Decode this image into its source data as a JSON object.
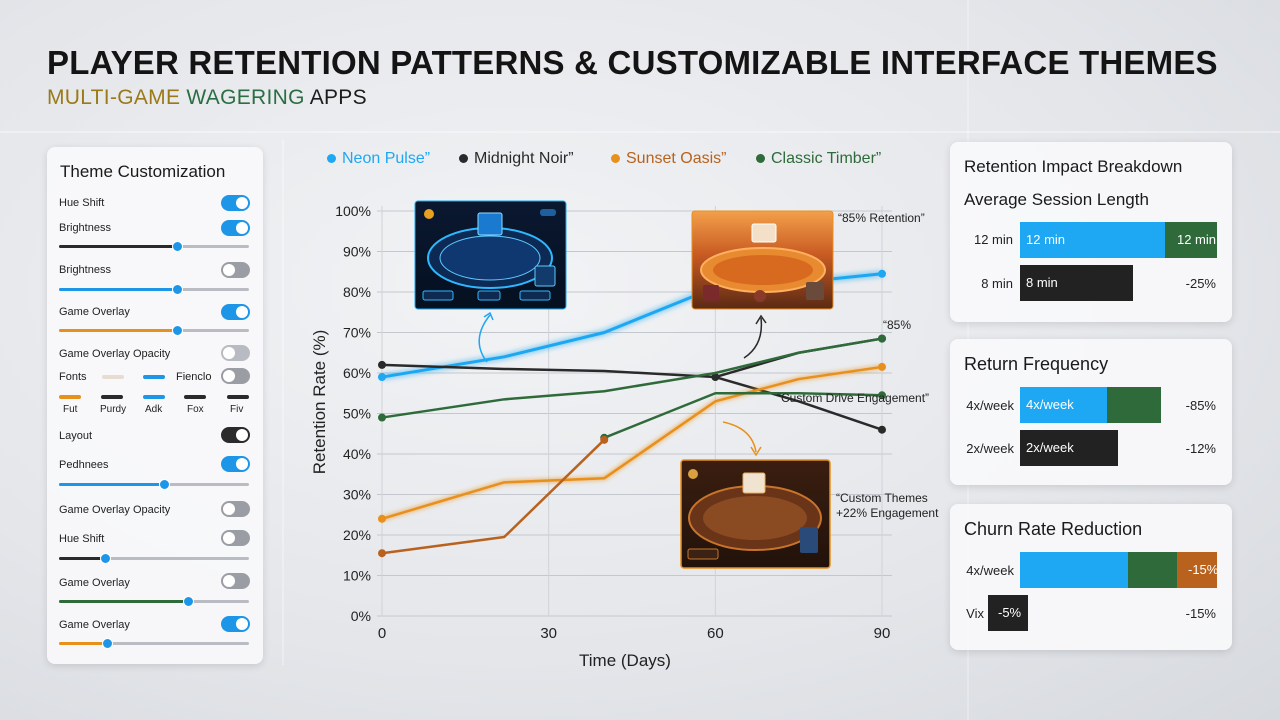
{
  "header": {
    "title": "PLAYER RETENTION PATTERNS & CUSTOMIZABLE INTERFACE THEMES",
    "subtitle_a": "MULTI-GAME ",
    "subtitle_b": "WAGERING ",
    "subtitle_c": "APPS"
  },
  "colors": {
    "neon": "#1ea7f2",
    "noir": "#2a2a2a",
    "sunset": "#e8901c",
    "timber": "#2f6b3a",
    "brown": "#b8621e",
    "accent": "#1e96e8"
  },
  "theme_panel": {
    "title": "Theme Customization",
    "controls": [
      {
        "label": "Hue Shift",
        "toggle": "on"
      },
      {
        "label": "Brightness",
        "toggle": "on",
        "slider": 0.62,
        "slider_color": "#1e96e8"
      },
      {
        "label": "Brightness",
        "toggle": "off",
        "slider": 0.62,
        "slider_color": "#1e96e8"
      },
      {
        "label": "Game Overlay",
        "toggle": "on",
        "slider": 0.62,
        "slider_color": "#e8901c"
      },
      {
        "label": "Game Overlay Opacity",
        "toggle": "offlight"
      },
      {
        "label": "Fonts",
        "toggle": "off",
        "extra": "Fienclo"
      },
      {
        "label": "Layout",
        "toggle": "dark"
      },
      {
        "label": "Pedhnees",
        "toggle": "on",
        "slider": 0.55,
        "slider_color": "#1e96e8"
      },
      {
        "label": "Game Overlay Opacity",
        "toggle": "off"
      },
      {
        "label": "Hue Shift",
        "toggle": "off",
        "slider": 0.24,
        "slider_color": "#2a2a2a"
      },
      {
        "label": "Game Overlay",
        "toggle": "off",
        "slider": 0.68,
        "slider_color": "#2f6b3a"
      },
      {
        "label": "Game Overlay",
        "toggle": "on",
        "slider": 0.25,
        "slider_color": "#e8901c"
      }
    ],
    "fonts": [
      {
        "name": "Fut",
        "color": "#e8901c"
      },
      {
        "name": "Purdy",
        "color": "#2a2a2a"
      },
      {
        "name": "Adk",
        "color": "#1e96e8"
      },
      {
        "name": "Fox",
        "color": "#2a2a2a"
      },
      {
        "name": "Fiv",
        "color": "#2a2a2a"
      }
    ]
  },
  "chart_data": {
    "type": "line",
    "xlabel": "Time (Days)",
    "ylabel": "Retention Rate (%)",
    "x_ticks": [
      "0",
      "30",
      "60",
      "90"
    ],
    "y_ticks": [
      "0%",
      "10%",
      "20%",
      "30%",
      "40%",
      "50%",
      "60%",
      "70%",
      "80%",
      "90%",
      "100%"
    ],
    "xlim": [
      0,
      90
    ],
    "ylim": [
      0,
      100
    ],
    "grid": true,
    "legend_position": "top",
    "legend": [
      "Neon Pulse”",
      "Midnight Noir”",
      "Sunset Oasis”",
      "Classic Timber”"
    ],
    "series": [
      {
        "name": "Neon Pulse”",
        "color": "#1ea7f2",
        "x": [
          0,
          22,
          40,
          58,
          90
        ],
        "y": [
          59,
          64,
          70,
          80,
          84.5
        ]
      },
      {
        "name": "Midnight Noir”",
        "color": "#2a2a2a",
        "x": [
          0,
          22,
          40,
          60,
          75,
          90
        ],
        "y": [
          62,
          61,
          60.5,
          59,
          53,
          46
        ]
      },
      {
        "name": "Midnight Noir”",
        "color": "#2a2a2a",
        "x": [
          60,
          75,
          90
        ],
        "y": [
          59,
          65,
          68.5
        ],
        "legend": false
      },
      {
        "name": "Sunset Oasis”",
        "color": "#e8901c",
        "x": [
          0,
          22,
          40,
          60,
          75,
          90
        ],
        "y": [
          24,
          33,
          34,
          53,
          58.5,
          61.5
        ]
      },
      {
        "name": "Classic Timber”",
        "color": "#2f6b3a",
        "x": [
          0,
          22,
          40,
          60,
          75,
          90
        ],
        "y": [
          49,
          53.5,
          55.5,
          60,
          65,
          68.5
        ]
      },
      {
        "name": "Classic Timber”",
        "color": "#2f6b3a",
        "x": [
          40,
          60,
          75,
          90
        ],
        "y": [
          44,
          55,
          55,
          54.5
        ],
        "legend": false
      },
      {
        "name": "",
        "color": "#b8621e",
        "x": [
          0,
          22,
          40
        ],
        "y": [
          15.5,
          19.5,
          43.5
        ]
      }
    ],
    "annotations": [
      {
        "text": "“85% Retention”"
      },
      {
        "text": "“85%"
      },
      {
        "text": "“Custom Drive Engagement”"
      },
      {
        "text": "“Custom Themes"
      },
      {
        "text": "+22% Engagement"
      }
    ]
  },
  "retention_panel": {
    "title": "Retention Impact Breakdown",
    "section": "Average Session Length",
    "rows": [
      {
        "label": "12 min",
        "bar_text": "12 min",
        "right": "12 min",
        "blue": 0.73,
        "green": 0.27
      },
      {
        "label": "8 min",
        "bar_text": "8 min",
        "right": "-25%",
        "dark": 0.56
      }
    ]
  },
  "return_panel": {
    "title": "Return Frequency",
    "rows": [
      {
        "label": "4x/week",
        "bar_text": "4x/week",
        "right": "-85%",
        "blue": 0.44,
        "green": 0.27
      },
      {
        "label": "2x/week",
        "bar_text": "2x/week",
        "right": "-12%",
        "dark": 0.49
      }
    ]
  },
  "churn_panel": {
    "title": "Churn Rate Reduction",
    "rows": [
      {
        "label": "4x/week",
        "bar_text": "-15%",
        "blue": 0.55,
        "green": 0.25,
        "orange": 0.2
      },
      {
        "label": "Vix",
        "bar_text": "-5%",
        "right": "-15%"
      }
    ]
  }
}
